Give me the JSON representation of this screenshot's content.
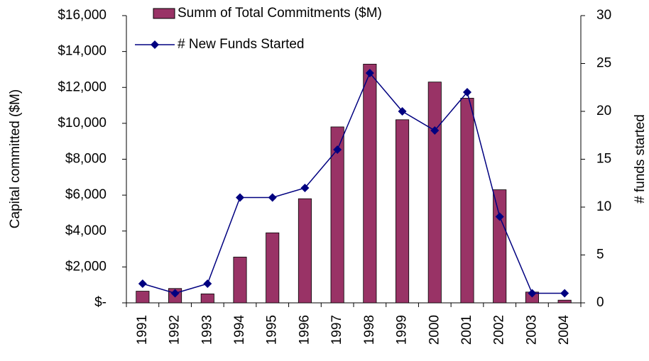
{
  "chart_data": {
    "type": "bar-line",
    "categories": [
      "1991",
      "1992",
      "1993",
      "1994",
      "1995",
      "1996",
      "1997",
      "1998",
      "1999",
      "2000",
      "2001",
      "2002",
      "2003",
      "2004"
    ],
    "y_label": "Capital committed ($M)",
    "y2_label": "# funds started",
    "series": [
      {
        "name": "Summ of Total Commitments ($M)",
        "type": "bar",
        "color": "#993366",
        "values": [
          650,
          800,
          500,
          2550,
          3900,
          5800,
          9800,
          13300,
          10200,
          12300,
          11400,
          6300,
          600,
          150
        ]
      },
      {
        "name": "# New Funds Started",
        "type": "line",
        "axis": "y2",
        "color": "#000080",
        "values": [
          2,
          1,
          2,
          11,
          11,
          12,
          16,
          24,
          20,
          18,
          22,
          9,
          1,
          1
        ]
      }
    ],
    "ylim": [
      0,
      16000
    ],
    "yticks": [
      {
        "value": 0,
        "label": "$-"
      },
      {
        "value": 2000,
        "label": "$2,000"
      },
      {
        "value": 4000,
        "label": "$4,000"
      },
      {
        "value": 6000,
        "label": "$6,000"
      },
      {
        "value": 8000,
        "label": "$8,000"
      },
      {
        "value": 10000,
        "label": "$10,000"
      },
      {
        "value": 12000,
        "label": "$12,000"
      },
      {
        "value": 14000,
        "label": "$14,000"
      },
      {
        "value": 16000,
        "label": "$16,000"
      }
    ],
    "y2lim": [
      0,
      30
    ],
    "y2ticks": [
      0,
      5,
      10,
      15,
      20,
      25,
      30
    ],
    "grid": false
  }
}
